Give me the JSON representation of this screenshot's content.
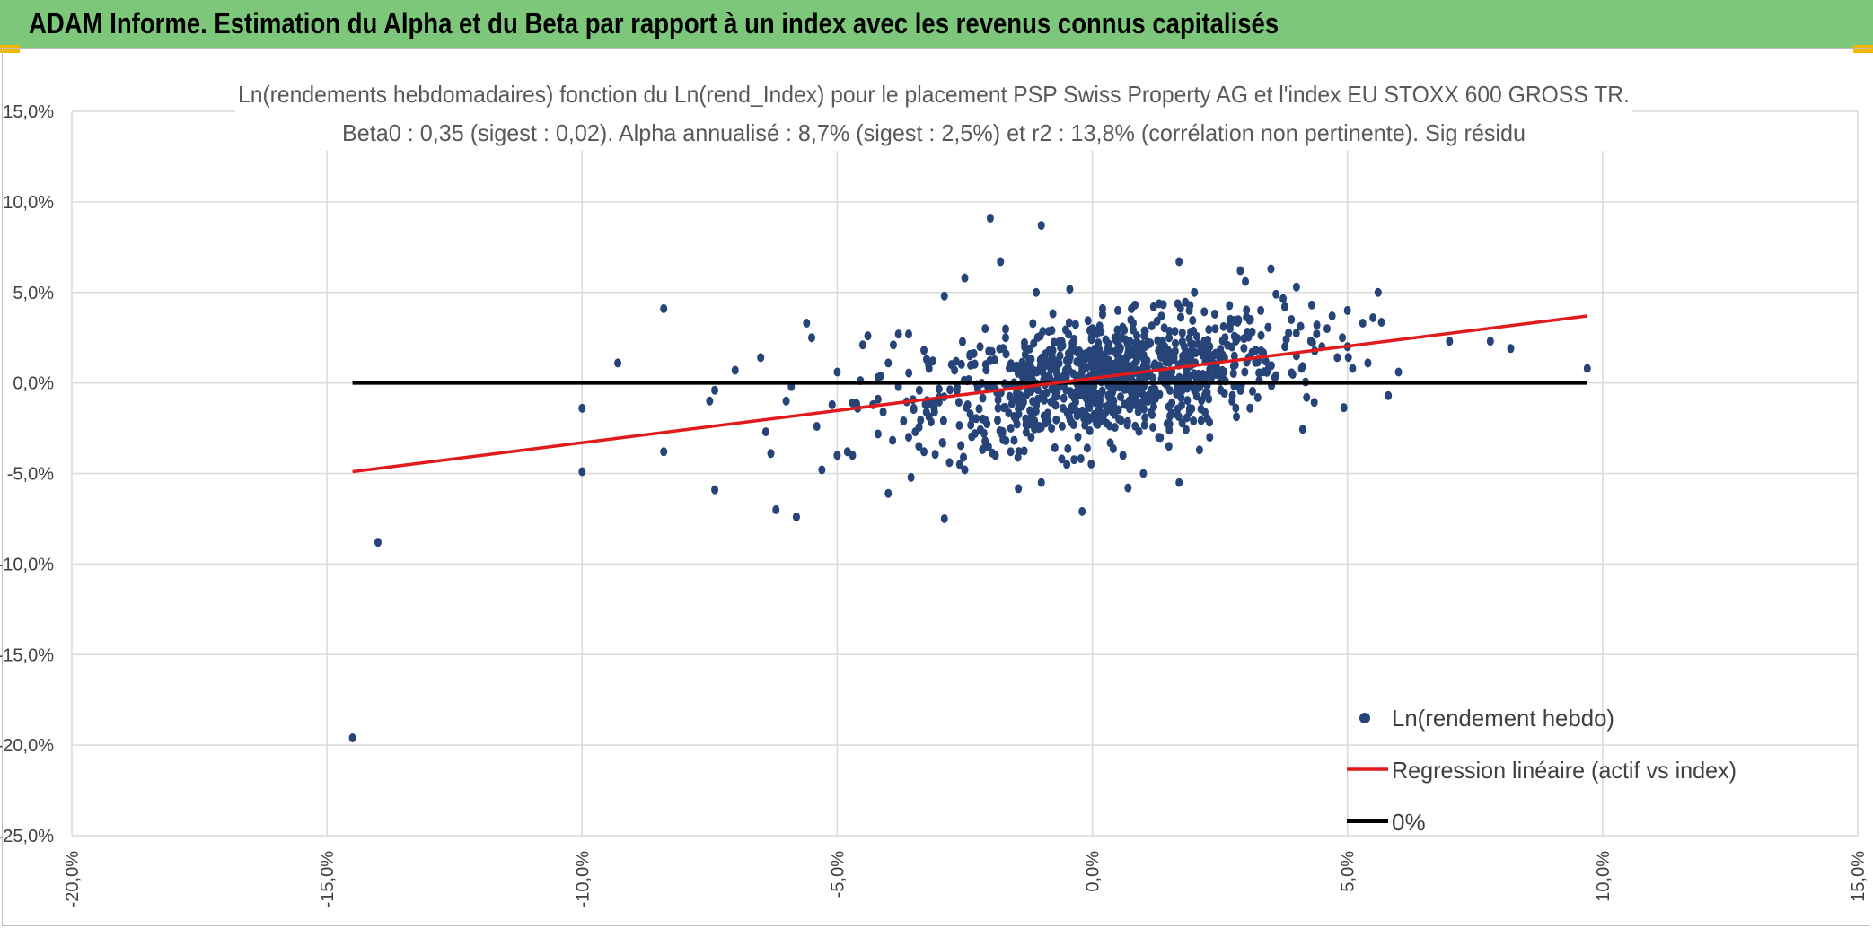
{
  "header": {
    "title": "ADAM Informe. Estimation du Alpha et du Beta par rapport à un index avec les revenus connus capitalisés",
    "background": "#7dc77a",
    "corner_color": "#f2b705"
  },
  "chart_data": {
    "type": "scatter",
    "title_line1": "Ln(rendements hebdomadaires) fonction du Ln(rend_Index) pour le placement PSP Swiss Property AG et l'index EU STOXX 600 GROSS TR.",
    "title_line2": "Beta0 : 0,35 (sigest : 0,02). Alpha annualisé : 8,7% (sigest : 2,5%) et r2 : 13,8% (corrélation non pertinente). Sig résidu",
    "xlim": [
      -0.2,
      0.15
    ],
    "ylim": [
      -0.25,
      0.15
    ],
    "x_ticks": [
      {
        "value": -0.2,
        "label": "-20,0%"
      },
      {
        "value": -0.15,
        "label": "-15,0%"
      },
      {
        "value": -0.1,
        "label": "-10,0%"
      },
      {
        "value": -0.05,
        "label": "-5,0%"
      },
      {
        "value": 0.0,
        "label": "0,0%"
      },
      {
        "value": 0.05,
        "label": "5,0%"
      },
      {
        "value": 0.1,
        "label": "10,0%"
      },
      {
        "value": 0.15,
        "label": "15,0%"
      }
    ],
    "y_ticks": [
      {
        "value": 0.15,
        "label": "15,0%"
      },
      {
        "value": 0.1,
        "label": "10,0%"
      },
      {
        "value": 0.05,
        "label": "5,0%"
      },
      {
        "value": 0.0,
        "label": "0,0%"
      },
      {
        "value": -0.05,
        "label": "-5,0%"
      },
      {
        "value": -0.1,
        "label": "-10,0%"
      },
      {
        "value": -0.15,
        "label": "-15,0%"
      },
      {
        "value": -0.2,
        "label": "-20,0%"
      },
      {
        "value": -0.25,
        "label": "-25,0%"
      }
    ],
    "grid": true,
    "legend_position": "bottom-right",
    "series": [
      {
        "name": "Ln(rendement hebdo)",
        "type": "scatter",
        "color": "#264478",
        "points": [
          [
            -0.145,
            -0.196
          ],
          [
            -0.14,
            -0.088
          ],
          [
            -0.1,
            -0.014
          ],
          [
            -0.1,
            -0.049
          ],
          [
            -0.093,
            0.011
          ],
          [
            -0.084,
            0.041
          ],
          [
            -0.084,
            -0.038
          ],
          [
            -0.075,
            -0.01
          ],
          [
            -0.074,
            -0.004
          ],
          [
            -0.074,
            -0.059
          ],
          [
            -0.07,
            0.007
          ],
          [
            -0.065,
            0.014
          ],
          [
            -0.064,
            -0.027
          ],
          [
            -0.063,
            -0.039
          ],
          [
            -0.062,
            -0.07
          ],
          [
            -0.06,
            -0.01
          ],
          [
            -0.058,
            -0.074
          ],
          [
            -0.059,
            -0.002
          ],
          [
            -0.056,
            0.033
          ],
          [
            -0.055,
            0.025
          ],
          [
            -0.054,
            -0.024
          ],
          [
            -0.053,
            -0.048
          ],
          [
            -0.051,
            -0.012
          ],
          [
            -0.05,
            -0.04
          ],
          [
            -0.048,
            -0.038
          ],
          [
            -0.047,
            -0.04
          ],
          [
            -0.047,
            -0.011
          ],
          [
            -0.046,
            -0.014
          ],
          [
            -0.05,
            0.006
          ],
          [
            -0.045,
            0.021
          ],
          [
            -0.044,
            0.026
          ],
          [
            -0.043,
            -0.012
          ],
          [
            -0.042,
            -0.009
          ],
          [
            -0.041,
            -0.016
          ],
          [
            -0.04,
            0.011
          ],
          [
            -0.04,
            -0.061
          ],
          [
            -0.039,
            0.021
          ],
          [
            -0.038,
            0.027
          ],
          [
            -0.037,
            -0.021
          ],
          [
            -0.036,
            -0.03
          ],
          [
            -0.036,
            0.027
          ],
          [
            -0.035,
            -0.014
          ],
          [
            -0.034,
            -0.035
          ],
          [
            -0.033,
            -0.038
          ],
          [
            -0.033,
            0.018
          ],
          [
            -0.031,
            -0.014
          ],
          [
            -0.03,
            -0.008
          ],
          [
            -0.029,
            -0.075
          ],
          [
            -0.029,
            0.048
          ],
          [
            -0.028,
            -0.044
          ],
          [
            -0.027,
            0.007
          ],
          [
            -0.026,
            -0.045
          ],
          [
            -0.025,
            0.058
          ],
          [
            -0.025,
            -0.048
          ],
          [
            -0.024,
            0.015
          ],
          [
            -0.023,
            -0.028
          ],
          [
            -0.022,
            0.02
          ],
          [
            -0.021,
            -0.035
          ],
          [
            -0.021,
            0.03
          ],
          [
            -0.02,
            0.091
          ],
          [
            -0.019,
            -0.04
          ],
          [
            -0.018,
            0.067
          ],
          [
            -0.017,
            0.025
          ],
          [
            -0.016,
            -0.038
          ],
          [
            -0.015,
            -0.02
          ],
          [
            -0.014,
            -0.01
          ],
          [
            -0.013,
            0.005
          ],
          [
            -0.012,
            -0.03
          ],
          [
            -0.011,
            0.05
          ],
          [
            -0.01,
            0.087
          ],
          [
            -0.01,
            -0.055
          ],
          [
            -0.008,
            -0.025
          ],
          [
            -0.007,
            0.012
          ],
          [
            -0.006,
            -0.042
          ],
          [
            -0.005,
            -0.045
          ],
          [
            -0.004,
            -0.022
          ],
          [
            -0.002,
            0.008
          ],
          [
            -0.001,
            -0.036
          ],
          [
            0.0,
            0.03
          ],
          [
            0.001,
            -0.018
          ],
          [
            0.002,
            0.041
          ],
          [
            -0.002,
            -0.071
          ],
          [
            0.005,
            0.04
          ],
          [
            0.006,
            -0.04
          ],
          [
            0.007,
            -0.058
          ],
          [
            0.008,
            0.033
          ],
          [
            0.01,
            -0.05
          ],
          [
            0.012,
            0.042
          ],
          [
            0.013,
            -0.03
          ],
          [
            0.015,
            -0.035
          ],
          [
            0.017,
            0.067
          ],
          [
            0.017,
            -0.055
          ],
          [
            0.018,
            0.02
          ],
          [
            0.019,
            0.04
          ],
          [
            0.02,
            0.05
          ],
          [
            0.021,
            -0.037
          ],
          [
            0.022,
            0.015
          ],
          [
            0.023,
            -0.03
          ],
          [
            0.024,
            0.038
          ],
          [
            0.026,
            0.025
          ],
          [
            0.027,
            0.03
          ],
          [
            0.028,
            0.01
          ],
          [
            0.029,
            0.062
          ],
          [
            0.03,
            0.056
          ],
          [
            0.031,
            0.035
          ],
          [
            0.032,
            0.018
          ],
          [
            0.033,
            0.04
          ],
          [
            0.034,
            0.012
          ],
          [
            0.035,
            0.063
          ],
          [
            0.036,
            0.049
          ],
          [
            0.036,
            0.004
          ],
          [
            0.038,
            0.024
          ],
          [
            0.039,
            0.035
          ],
          [
            0.04,
            0.053
          ],
          [
            0.04,
            0.015
          ],
          [
            0.041,
            0.008
          ],
          [
            0.042,
            -0.008
          ],
          [
            0.043,
            0.043
          ],
          [
            0.044,
            0.032
          ],
          [
            0.045,
            0.02
          ],
          [
            0.046,
            0.03
          ],
          [
            0.047,
            0.037
          ],
          [
            0.048,
            0.014
          ],
          [
            0.049,
            0.025
          ],
          [
            0.05,
            0.04
          ],
          [
            0.05,
            0.02
          ],
          [
            0.051,
            0.008
          ],
          [
            0.053,
            0.033
          ],
          [
            0.054,
            0.011
          ],
          [
            0.055,
            0.036
          ],
          [
            0.056,
            0.05
          ],
          [
            0.058,
            -0.007
          ],
          [
            0.06,
            0.006
          ],
          [
            0.07,
            0.023
          ],
          [
            0.078,
            0.023
          ],
          [
            0.082,
            0.019
          ],
          [
            0.097,
            0.008
          ],
          [
            -0.032,
            0.008
          ],
          [
            -0.038,
            -0.002
          ],
          [
            -0.042,
            0.003
          ]
        ]
      },
      {
        "name": "Regression linéaire (actif vs index)",
        "type": "line",
        "color": "#e31a1c",
        "points": [
          [
            -0.145,
            -0.049
          ],
          [
            0.097,
            0.037
          ]
        ]
      },
      {
        "name": "0%",
        "type": "line",
        "color": "#000000",
        "points": [
          [
            -0.145,
            0.0
          ],
          [
            0.097,
            0.0
          ]
        ]
      }
    ],
    "cluster": {
      "note_values": "dense cloud of weekly log-returns centred near the origin",
      "center": [
        0.003,
        0.002
      ],
      "spread": [
        0.017,
        0.016
      ],
      "count": 900
    }
  }
}
